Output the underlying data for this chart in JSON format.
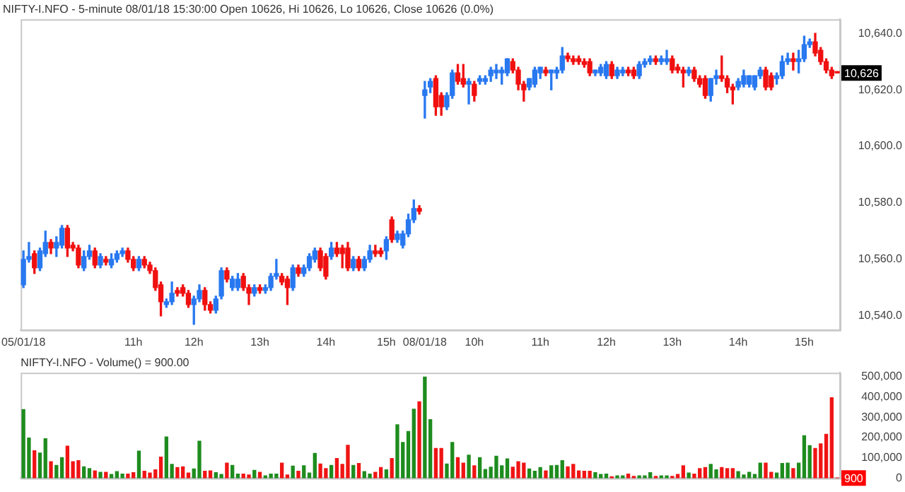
{
  "chart_data": [
    {
      "type": "candlestick",
      "title": "NIFTY-I.NFO - 5-minute 08/01/18 15:30:00 Open 10626, Hi 10626, Lo 10626, Close 10626 (0.0%)",
      "categories": [
        "05/01/18",
        null,
        null,
        null,
        null,
        null,
        null,
        null,
        null,
        null,
        null,
        null,
        null,
        null,
        null,
        null,
        null,
        null,
        null,
        null,
        "11h",
        null,
        null,
        null,
        null,
        null,
        null,
        null,
        null,
        null,
        null,
        "12h",
        null,
        null,
        null,
        null,
        null,
        null,
        null,
        null,
        null,
        null,
        null,
        "13h",
        null,
        null,
        null,
        null,
        null,
        null,
        null,
        null,
        null,
        null,
        null,
        "14h",
        null,
        null,
        null,
        null,
        null,
        null,
        null,
        null,
        null,
        null,
        "15h",
        null,
        null,
        null,
        null,
        null,
        null,
        "08/01/18",
        null,
        null,
        null,
        null,
        null,
        null,
        null,
        null,
        "10h",
        null,
        null,
        null,
        null,
        null,
        null,
        null,
        null,
        null,
        null,
        null,
        "11h",
        null,
        null,
        null,
        null,
        null,
        null,
        null,
        null,
        null,
        null,
        null,
        "12h",
        null,
        null,
        null,
        null,
        null,
        null,
        null,
        null,
        null,
        null,
        null,
        "13h",
        null,
        null,
        null,
        null,
        null,
        null,
        null,
        null,
        null,
        null,
        null,
        "14h",
        null,
        null,
        null,
        null,
        null,
        null,
        null,
        null,
        null,
        null,
        null,
        "15h",
        null,
        null,
        null,
        null,
        null,
        null
      ],
      "ohlc": [
        [
          10551,
          10563,
          10550,
          10560
        ],
        [
          10560,
          10566,
          10559,
          10561
        ],
        [
          10562,
          10563,
          10555,
          10557
        ],
        [
          10557,
          10564,
          10556,
          10563
        ],
        [
          10562,
          10570,
          10561,
          10566
        ],
        [
          10566,
          10567,
          10562,
          10564
        ],
        [
          10564,
          10568,
          10561,
          10566
        ],
        [
          10565,
          10572,
          10564,
          10571
        ],
        [
          10571,
          10572,
          10561,
          10564
        ],
        [
          10565,
          10566,
          10563,
          10564
        ],
        [
          10564,
          10565,
          10557,
          10558
        ],
        [
          10557,
          10563,
          10556,
          10561
        ],
        [
          10561,
          10565,
          10560,
          10563
        ],
        [
          10563,
          10564,
          10557,
          10558
        ],
        [
          10558,
          10562,
          10557,
          10561
        ],
        [
          10560,
          10561,
          10558,
          10559
        ],
        [
          10558,
          10562,
          10557,
          10560
        ],
        [
          10560,
          10563,
          10559,
          10562
        ],
        [
          10562,
          10564,
          10561,
          10563
        ],
        [
          10563,
          10564,
          10559,
          10560
        ],
        [
          10560,
          10561,
          10556,
          10557
        ],
        [
          10557,
          10561,
          10556,
          10560
        ],
        [
          10560,
          10561,
          10557,
          10558
        ],
        [
          10558,
          10559,
          10555,
          10556
        ],
        [
          10556,
          10557,
          10549,
          10550
        ],
        [
          10551,
          10552,
          10540,
          10545
        ],
        [
          10544,
          10546,
          10543,
          10545
        ],
        [
          10545,
          10552,
          10544,
          10548
        ],
        [
          10549,
          10550,
          10547,
          10548
        ],
        [
          10550,
          10551,
          10547,
          10548
        ],
        [
          10548,
          10549,
          10543,
          10544
        ],
        [
          10544,
          10547,
          10537,
          10546
        ],
        [
          10546,
          10551,
          10545,
          10549
        ],
        [
          10549,
          10550,
          10542,
          10544
        ],
        [
          10544,
          10545,
          10541,
          10542
        ],
        [
          10542,
          10547,
          10541,
          10546
        ],
        [
          10547,
          10557,
          10546,
          10556
        ],
        [
          10556,
          10557,
          10552,
          10553
        ],
        [
          10550,
          10554,
          10549,
          10553
        ],
        [
          10550,
          10555,
          10549,
          10553
        ],
        [
          10554,
          10555,
          10549,
          10550
        ],
        [
          10550,
          10551,
          10544,
          10548
        ],
        [
          10548,
          10551,
          10547,
          10550
        ],
        [
          10550,
          10551,
          10548,
          10549
        ],
        [
          10549,
          10551,
          10548,
          10550
        ],
        [
          10550,
          10555,
          10549,
          10554
        ],
        [
          10554,
          10560,
          10553,
          10555
        ],
        [
          10554,
          10555,
          10551,
          10552
        ],
        [
          10553,
          10554,
          10544,
          10550
        ],
        [
          10550,
          10558,
          10549,
          10557
        ],
        [
          10557,
          10558,
          10554,
          10555
        ],
        [
          10555,
          10558,
          10554,
          10557
        ],
        [
          10557,
          10562,
          10556,
          10561
        ],
        [
          10560,
          10564,
          10559,
          10563
        ],
        [
          10563,
          10564,
          10556,
          10557
        ],
        [
          10561,
          10562,
          10553,
          10554
        ],
        [
          10561,
          10566,
          10560,
          10564
        ],
        [
          10564,
          10566,
          10561,
          10562
        ],
        [
          10564,
          10565,
          10557,
          10562
        ],
        [
          10564,
          10566,
          10556,
          10557
        ],
        [
          10557,
          10561,
          10556,
          10560
        ],
        [
          10560,
          10561,
          10556,
          10557
        ],
        [
          10557,
          10561,
          10556,
          10560
        ],
        [
          10560,
          10565,
          10559,
          10563
        ],
        [
          10563,
          10565,
          10561,
          10562
        ],
        [
          10563,
          10564,
          10561,
          10562
        ],
        [
          10563,
          10568,
          10560,
          10567
        ],
        [
          10574,
          10575,
          10566,
          10567
        ],
        [
          10567,
          10570,
          10566,
          10569
        ],
        [
          10565,
          10570,
          10564,
          10569
        ],
        [
          10569,
          10576,
          10568,
          10574
        ],
        [
          10574,
          10581,
          10573,
          10578
        ],
        [
          10578,
          10579,
          10576,
          10577
        ],
        [
          10618,
          10623,
          10610,
          10620
        ],
        [
          10621,
          10624,
          10619,
          10623
        ],
        [
          10624,
          10625,
          10611,
          10614
        ],
        [
          10618,
          10619,
          10611,
          10614
        ],
        [
          10614,
          10619,
          10613,
          10618
        ],
        [
          10618,
          10627,
          10617,
          10626
        ],
        [
          10626,
          10629,
          10622,
          10623
        ],
        [
          10624,
          10629,
          10621,
          10622
        ],
        [
          10622,
          10624,
          10615,
          10623
        ],
        [
          10622,
          10623,
          10616,
          10618
        ],
        [
          10623,
          10625,
          10622,
          10624
        ],
        [
          10623,
          10625,
          10622,
          10624
        ],
        [
          10625,
          10628,
          10623,
          10627
        ],
        [
          10626,
          10629,
          10624,
          10627
        ],
        [
          10626,
          10628,
          10622,
          10627
        ],
        [
          10626,
          10631,
          10625,
          10631
        ],
        [
          10630,
          10631,
          10626,
          10627
        ],
        [
          10627,
          10628,
          10620,
          10622
        ],
        [
          10622,
          10623,
          10616,
          10620
        ],
        [
          10621,
          10624,
          10620,
          10624
        ],
        [
          10622,
          10628,
          10621,
          10627
        ],
        [
          10626,
          10628,
          10624,
          10628
        ],
        [
          10627,
          10628,
          10625,
          10626
        ],
        [
          10626,
          10627,
          10620,
          10627
        ],
        [
          10626,
          10628,
          10624,
          10627
        ],
        [
          10627,
          10635,
          10626,
          10632
        ],
        [
          10632,
          10633,
          10630,
          10631
        ],
        [
          10631,
          10632,
          10629,
          10630
        ],
        [
          10631,
          10632,
          10629,
          10630
        ],
        [
          10630,
          10631,
          10628,
          10629
        ],
        [
          10630,
          10631,
          10625,
          10626
        ],
        [
          10626,
          10627,
          10625,
          10627
        ],
        [
          10626,
          10629,
          10625,
          10628
        ],
        [
          10625,
          10630,
          10624,
          10629
        ],
        [
          10629,
          10630,
          10624,
          10625
        ],
        [
          10625,
          10628,
          10624,
          10627
        ],
        [
          10626,
          10628,
          10625,
          10627
        ],
        [
          10627,
          10628,
          10625,
          10626
        ],
        [
          10627,
          10628,
          10624,
          10625
        ],
        [
          10625,
          10630,
          10624,
          10629
        ],
        [
          10629,
          10631,
          10628,
          10630
        ],
        [
          10630,
          10632,
          10629,
          10631
        ],
        [
          10631,
          10632,
          10629,
          10630
        ],
        [
          10630,
          10632,
          10629,
          10631
        ],
        [
          10630,
          10634,
          10629,
          10631
        ],
        [
          10631,
          10632,
          10626,
          10627
        ],
        [
          10628,
          10629,
          10626,
          10627
        ],
        [
          10627,
          10628,
          10621,
          10626
        ],
        [
          10626,
          10628,
          10625,
          10627
        ],
        [
          10627,
          10628,
          10623,
          10624
        ],
        [
          10624,
          10625,
          10621,
          10622
        ],
        [
          10624,
          10625,
          10617,
          10618
        ],
        [
          10618,
          10624,
          10616,
          10624
        ],
        [
          10624,
          10627,
          10622,
          10625
        ],
        [
          10625,
          10632,
          10623,
          10624
        ],
        [
          10624,
          10625,
          10619,
          10621
        ],
        [
          10621,
          10622,
          10615,
          10620
        ],
        [
          10621,
          10624,
          10620,
          10623
        ],
        [
          10622,
          10627,
          10621,
          10625
        ],
        [
          10622,
          10625,
          10621,
          10625
        ],
        [
          10621,
          10625,
          10620,
          10625
        ],
        [
          10625,
          10628,
          10624,
          10627
        ],
        [
          10627,
          10628,
          10620,
          10621
        ],
        [
          10625,
          10626,
          10620,
          10621
        ],
        [
          10624,
          10626,
          10622,
          10625
        ],
        [
          10625,
          10632,
          10624,
          10630
        ],
        [
          10630,
          10633,
          10629,
          10631
        ],
        [
          10631,
          10633,
          10627,
          10630
        ],
        [
          10630,
          10634,
          10626,
          10631
        ],
        [
          10631,
          10639,
          10630,
          10636
        ],
        [
          10636,
          10638,
          10635,
          10637
        ],
        [
          10637,
          10640,
          10632,
          10633
        ],
        [
          10634,
          10635,
          10629,
          10630
        ],
        [
          10630,
          10631,
          10626,
          10627
        ],
        [
          10627,
          10628,
          10624,
          10625
        ],
        [
          10626,
          10626,
          10626,
          10626
        ]
      ],
      "colors": [
        "#2878f0",
        "#2878f0",
        "#f01010",
        "#2878f0",
        "#2878f0",
        "#f01010",
        "#2878f0",
        "#2878f0",
        "#f01010",
        "#f01010",
        "#f01010",
        "#2878f0",
        "#2878f0",
        "#f01010",
        "#2878f0",
        "#f01010",
        "#2878f0",
        "#2878f0",
        "#2878f0",
        "#f01010",
        "#f01010",
        "#2878f0",
        "#f01010",
        "#f01010",
        "#f01010",
        "#f01010",
        "#2878f0",
        "#2878f0",
        "#f01010",
        "#f01010",
        "#f01010",
        "#2878f0",
        "#2878f0",
        "#f01010",
        "#f01010",
        "#2878f0",
        "#2878f0",
        "#f01010",
        "#2878f0",
        "#2878f0",
        "#f01010",
        "#f01010",
        "#2878f0",
        "#f01010",
        "#2878f0",
        "#2878f0",
        "#2878f0",
        "#f01010",
        "#f01010",
        "#2878f0",
        "#f01010",
        "#2878f0",
        "#2878f0",
        "#2878f0",
        "#f01010",
        "#f01010",
        "#2878f0",
        "#f01010",
        "#f01010",
        "#f01010",
        "#2878f0",
        "#f01010",
        "#2878f0",
        "#2878f0",
        "#f01010",
        "#f01010",
        "#2878f0",
        "#f01010",
        "#2878f0",
        "#2878f0",
        "#2878f0",
        "#2878f0",
        "#f01010",
        "#2878f0",
        "#2878f0",
        "#f01010",
        "#f01010",
        "#2878f0",
        "#2878f0",
        "#f01010",
        "#f01010",
        "#2878f0",
        "#f01010",
        "#2878f0",
        "#2878f0",
        "#2878f0",
        "#2878f0",
        "#2878f0",
        "#2878f0",
        "#f01010",
        "#f01010",
        "#f01010",
        "#2878f0",
        "#2878f0",
        "#2878f0",
        "#f01010",
        "#2878f0",
        "#2878f0",
        "#2878f0",
        "#f01010",
        "#f01010",
        "#f01010",
        "#f01010",
        "#f01010",
        "#2878f0",
        "#2878f0",
        "#2878f0",
        "#f01010",
        "#2878f0",
        "#2878f0",
        "#f01010",
        "#f01010",
        "#2878f0",
        "#2878f0",
        "#2878f0",
        "#f01010",
        "#2878f0",
        "#2878f0",
        "#f01010",
        "#f01010",
        "#f01010",
        "#2878f0",
        "#f01010",
        "#f01010",
        "#f01010",
        "#2878f0",
        "#2878f0",
        "#f01010",
        "#f01010",
        "#f01010",
        "#2878f0",
        "#2878f0",
        "#2878f0",
        "#2878f0",
        "#2878f0",
        "#f01010",
        "#f01010",
        "#2878f0",
        "#2878f0",
        "#2878f0",
        "#f01010",
        "#2878f0",
        "#2878f0",
        "#2878f0",
        "#f01010",
        "#f01010",
        "#f01010",
        "#f01010",
        "#f01010"
      ],
      "ylim": [
        10535,
        10645
      ],
      "yticks": [
        {
          "value": 10540,
          "label": "10,540.0"
        },
        {
          "value": 10560,
          "label": "10,560.0"
        },
        {
          "value": 10580,
          "label": "10,580.0"
        },
        {
          "value": 10600,
          "label": "10,600.0"
        },
        {
          "value": 10620,
          "label": "10,620.0"
        },
        {
          "value": 10640,
          "label": "10,640.0"
        }
      ],
      "annotations": [
        {
          "text": "10,626",
          "y": 10626
        }
      ],
      "grid": false,
      "legend": false
    },
    {
      "type": "bar",
      "title": "NIFTY-I.NFO - Volume() = 900.00",
      "categories": [
        null,
        null,
        null,
        null,
        null,
        null,
        null,
        null,
        null,
        null,
        null,
        null,
        null,
        null,
        null,
        null,
        null,
        null,
        null,
        null,
        null,
        null,
        null,
        null,
        null,
        null,
        null,
        null,
        null,
        null,
        null,
        null,
        null,
        null,
        null,
        null,
        null,
        null,
        null,
        null,
        null,
        null,
        null,
        null,
        null,
        null,
        null,
        null,
        null,
        null,
        null,
        null,
        null,
        null,
        null,
        null,
        null,
        null,
        null,
        null,
        null,
        null,
        null,
        null,
        null,
        null,
        null,
        null,
        null,
        null,
        null,
        null,
        null,
        null,
        null,
        null,
        null,
        null,
        null,
        null,
        null,
        null,
        null,
        null,
        null,
        null,
        null,
        null,
        null,
        null,
        null,
        null,
        null,
        null,
        null,
        null,
        null,
        null,
        null,
        null,
        null,
        null,
        null,
        null,
        null,
        null,
        null,
        null,
        null,
        null,
        null,
        null,
        null,
        null,
        null,
        null,
        null,
        null,
        null,
        null,
        null,
        null,
        null,
        null,
        null,
        null,
        null,
        null,
        null,
        null,
        null,
        null,
        null,
        null,
        null,
        null,
        null,
        null,
        null,
        null,
        null,
        null,
        null,
        null,
        null,
        null,
        null,
        null,
        null
      ],
      "values": [
        338000,
        198000,
        135000,
        124000,
        194000,
        81000,
        63000,
        101000,
        158000,
        81000,
        86000,
        56000,
        47000,
        36000,
        29000,
        29000,
        18000,
        32000,
        20000,
        20000,
        27000,
        133000,
        34000,
        25000,
        41000,
        104000,
        203000,
        68000,
        52000,
        56000,
        25000,
        45000,
        182000,
        34000,
        36000,
        27000,
        18000,
        74000,
        63000,
        20000,
        20000,
        16000,
        38000,
        29000,
        11000,
        20000,
        20000,
        74000,
        16000,
        59000,
        34000,
        61000,
        25000,
        122000,
        70000,
        47000,
        63000,
        97000,
        68000,
        162000,
        63000,
        72000,
        32000,
        20000,
        29000,
        52000,
        41000,
        97000,
        263000,
        176000,
        230000,
        340000,
        376000,
        498000,
        288000,
        146000,
        146000,
        70000,
        176000,
        101000,
        74000,
        113000,
        61000,
        101000,
        43000,
        54000,
        108000,
        61000,
        95000,
        54000,
        81000,
        74000,
        45000,
        34000,
        52000,
        36000,
        61000,
        63000,
        86000,
        56000,
        68000,
        36000,
        34000,
        34000,
        27000,
        18000,
        20000,
        7000,
        11000,
        11000,
        20000,
        9000,
        11000,
        11000,
        27000,
        9000,
        11000,
        11000,
        9000,
        18000,
        61000,
        25000,
        20000,
        47000,
        52000,
        68000,
        41000,
        52000,
        47000,
        47000,
        32000,
        16000,
        29000,
        18000,
        74000,
        74000,
        29000,
        25000,
        72000,
        74000,
        47000,
        74000,
        209000,
        160000,
        146000,
        169000,
        216000,
        396000,
        900
      ],
      "colors": [
        "#1e8c1e",
        "#1e8c1e",
        "#f01414",
        "#1e8c1e",
        "#1e8c1e",
        "#f01414",
        "#1e8c1e",
        "#1e8c1e",
        "#f01414",
        "#f01414",
        "#f01414",
        "#1e8c1e",
        "#1e8c1e",
        "#f01414",
        "#1e8c1e",
        "#f01414",
        "#1e8c1e",
        "#1e8c1e",
        "#1e8c1e",
        "#f01414",
        "#f01414",
        "#1e8c1e",
        "#f01414",
        "#f01414",
        "#f01414",
        "#f01414",
        "#1e8c1e",
        "#1e8c1e",
        "#f01414",
        "#f01414",
        "#f01414",
        "#1e8c1e",
        "#1e8c1e",
        "#f01414",
        "#f01414",
        "#1e8c1e",
        "#1e8c1e",
        "#f01414",
        "#1e8c1e",
        "#1e8c1e",
        "#f01414",
        "#f01414",
        "#1e8c1e",
        "#f01414",
        "#1e8c1e",
        "#1e8c1e",
        "#1e8c1e",
        "#f01414",
        "#f01414",
        "#1e8c1e",
        "#f01414",
        "#1e8c1e",
        "#1e8c1e",
        "#1e8c1e",
        "#f01414",
        "#f01414",
        "#1e8c1e",
        "#f01414",
        "#f01414",
        "#f01414",
        "#1e8c1e",
        "#f01414",
        "#1e8c1e",
        "#1e8c1e",
        "#f01414",
        "#f01414",
        "#1e8c1e",
        "#f01414",
        "#1e8c1e",
        "#1e8c1e",
        "#1e8c1e",
        "#1e8c1e",
        "#f01414",
        "#1e8c1e",
        "#1e8c1e",
        "#f01414",
        "#f01414",
        "#1e8c1e",
        "#1e8c1e",
        "#f01414",
        "#f01414",
        "#1e8c1e",
        "#f01414",
        "#1e8c1e",
        "#1e8c1e",
        "#1e8c1e",
        "#1e8c1e",
        "#1e8c1e",
        "#1e8c1e",
        "#f01414",
        "#f01414",
        "#f01414",
        "#1e8c1e",
        "#1e8c1e",
        "#1e8c1e",
        "#f01414",
        "#1e8c1e",
        "#1e8c1e",
        "#1e8c1e",
        "#f01414",
        "#f01414",
        "#f01414",
        "#f01414",
        "#f01414",
        "#1e8c1e",
        "#1e8c1e",
        "#1e8c1e",
        "#f01414",
        "#1e8c1e",
        "#1e8c1e",
        "#f01414",
        "#f01414",
        "#1e8c1e",
        "#1e8c1e",
        "#1e8c1e",
        "#f01414",
        "#1e8c1e",
        "#1e8c1e",
        "#f01414",
        "#f01414",
        "#f01414",
        "#1e8c1e",
        "#f01414",
        "#f01414",
        "#f01414",
        "#1e8c1e",
        "#1e8c1e",
        "#f01414",
        "#f01414",
        "#f01414",
        "#1e8c1e",
        "#1e8c1e",
        "#1e8c1e",
        "#1e8c1e",
        "#1e8c1e",
        "#f01414",
        "#f01414",
        "#1e8c1e",
        "#1e8c1e",
        "#1e8c1e",
        "#f01414",
        "#1e8c1e",
        "#1e8c1e",
        "#1e8c1e",
        "#f01414",
        "#f01414",
        "#f01414",
        "#f01414",
        "#f01414"
      ],
      "ylim": [
        0,
        520000
      ],
      "yticks": [
        0,
        {
          "value": 100000,
          "label": "100,000"
        },
        {
          "value": 200000,
          "label": "200,000"
        },
        {
          "value": 300000,
          "label": "300,000"
        },
        {
          "value": 400000,
          "label": "400,000"
        },
        {
          "value": 500000,
          "label": "500,000"
        }
      ],
      "annotations": [
        {
          "text": "900",
          "y": 900
        }
      ],
      "tick_labels": "y",
      "grid": false,
      "legend": false
    }
  ]
}
